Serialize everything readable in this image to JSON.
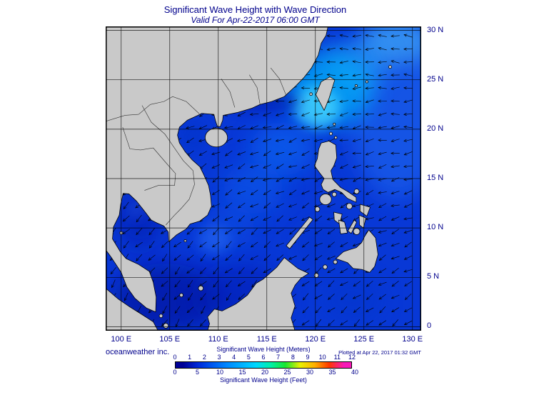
{
  "header": {
    "title": "Significant Wave Height with Wave Direction",
    "subtitle": "Valid For Apr-22-2017 06:00 GMT"
  },
  "map": {
    "lat_labels": [
      "30 N",
      "25 N",
      "20 N",
      "15 N",
      "10 N",
      "5 N",
      "0"
    ],
    "lat_values": [
      30,
      25,
      20,
      15,
      10,
      5,
      0
    ],
    "lon_labels": [
      "100 E",
      "105 E",
      "110 E",
      "115 E",
      "120 E",
      "125 E",
      "130 E"
    ],
    "lon_values": [
      100,
      105,
      110,
      115,
      120,
      125,
      130
    ],
    "land_color": "#c9c9c9",
    "sea_color": "#0838d6",
    "grid_color": "#000000",
    "arrow_color": "#000000"
  },
  "footer": {
    "credit": "oceanweather inc.",
    "plotted": "Plotted at Apr 22, 2017 01:32 GMT"
  },
  "legend": {
    "meters_label": "Significant Wave Height (Meters)",
    "feet_label": "Significant Wave Height (Feet)",
    "meters_ticks": [
      0,
      1,
      2,
      3,
      4,
      5,
      6,
      7,
      8,
      9,
      10,
      11,
      12
    ],
    "feet_ticks": [
      0,
      5,
      10,
      15,
      20,
      25,
      30,
      35,
      40
    ],
    "meters_max": 12,
    "feet_per_meter": 3.2808,
    "colors": [
      "#000096",
      "#0028d8",
      "#0058f0",
      "#0088ff",
      "#00b0ff",
      "#00d8ff",
      "#00f0a8",
      "#18e830",
      "#e8f000",
      "#ffb000",
      "#ff3800",
      "#f818b8"
    ]
  }
}
